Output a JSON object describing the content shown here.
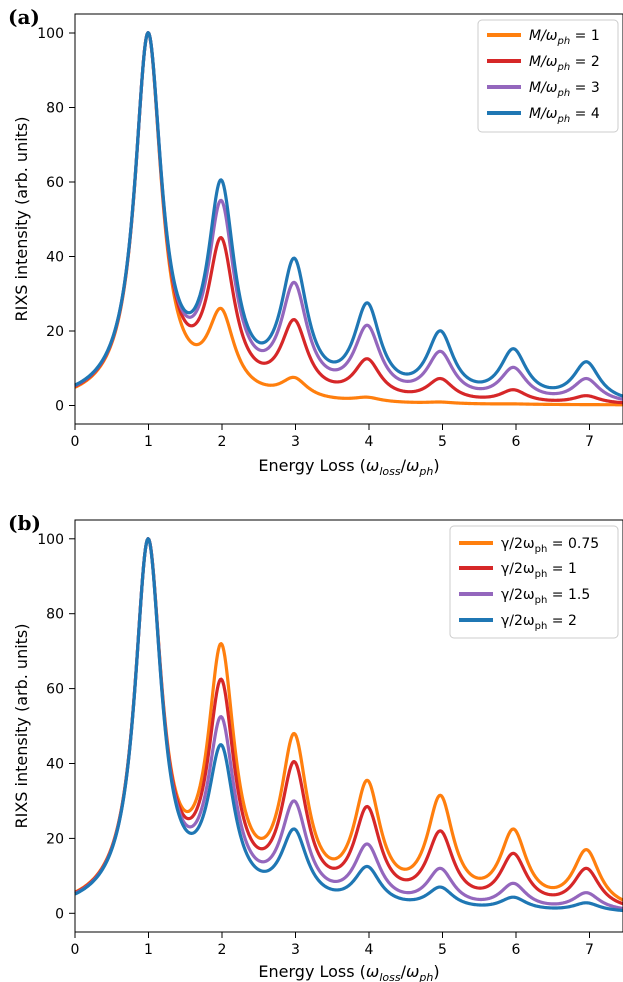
{
  "chart_data": [
    {
      "type": "line",
      "panel_label": "(a)",
      "xlabel_main": "Energy Loss (",
      "xlabel_num": "ω",
      "xlabel_num_sub": "loss",
      "xlabel_slash": "/",
      "xlabel_den": "ω",
      "xlabel_den_sub": "ph",
      "xlabel_close": ")",
      "ylabel": "RIXS intensity (arb. units)",
      "xlim": [
        0,
        7.5
      ],
      "ylim": [
        -5,
        105
      ],
      "xticks": [
        "0",
        "1",
        "2",
        "3",
        "4",
        "5",
        "6",
        "7"
      ],
      "yticks": [
        "0",
        "20",
        "40",
        "60",
        "80",
        "100"
      ],
      "legend_position": "top-right",
      "legend_prefix": "M/ω",
      "legend_sub": "ph",
      "grid": false,
      "series": [
        {
          "name": "1",
          "color": "#ff7f0e",
          "peaks": [
            100,
            26,
            7.5,
            2.2,
            0.9,
            0.4,
            0.2
          ]
        },
        {
          "name": "2",
          "color": "#d62728",
          "peaks": [
            100,
            45,
            23,
            12.5,
            7.2,
            4.2,
            2.6
          ]
        },
        {
          "name": "3",
          "color": "#9467bd",
          "peaks": [
            100,
            55,
            33,
            21.5,
            14.5,
            10.2,
            7.2
          ]
        },
        {
          "name": "4",
          "color": "#1f77b4",
          "peaks": [
            100,
            60.5,
            39.5,
            27.5,
            20,
            15.2,
            11.7
          ]
        }
      ]
    },
    {
      "type": "line",
      "panel_label": "(b)",
      "xlabel_main": "Energy Loss (",
      "xlabel_num": "ω",
      "xlabel_num_sub": "loss",
      "xlabel_slash": "/",
      "xlabel_den": "ω",
      "xlabel_den_sub": "ph",
      "xlabel_close": ")",
      "ylabel": "RIXS intensity (arb. units)",
      "xlim": [
        0,
        7.5
      ],
      "ylim": [
        -5,
        105
      ],
      "xticks": [
        "0",
        "1",
        "2",
        "3",
        "4",
        "5",
        "6",
        "7"
      ],
      "yticks": [
        "0",
        "20",
        "40",
        "60",
        "80",
        "100"
      ],
      "legend_position": "top-right",
      "legend_prefix": "γ/2ω",
      "legend_sub": "ph",
      "grid": false,
      "series": [
        {
          "name": "0.75",
          "color": "#ff7f0e",
          "peaks": [
            100,
            72,
            48,
            35.5,
            31.5,
            22.5,
            17
          ]
        },
        {
          "name": "1",
          "color": "#d62728",
          "peaks": [
            100,
            62.5,
            40.5,
            28.5,
            22,
            16,
            12
          ]
        },
        {
          "name": "1.5",
          "color": "#9467bd",
          "peaks": [
            100,
            52.5,
            30,
            18.5,
            12,
            8,
            5.5
          ]
        },
        {
          "name": "2",
          "color": "#1f77b4",
          "peaks": [
            100,
            45,
            22.5,
            12.5,
            7,
            4.3,
            2.8
          ]
        }
      ]
    }
  ]
}
